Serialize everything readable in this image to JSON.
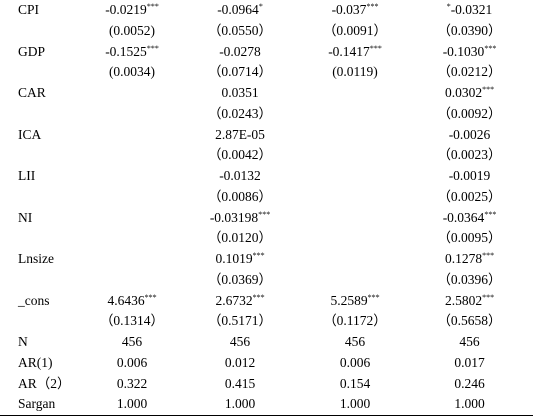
{
  "table": {
    "rows": [
      {
        "label": "CPI",
        "cells": [
          {
            "text": "-0.0219",
            "sig": "***"
          },
          {
            "text": "-0.0964",
            "sig": "*"
          },
          {
            "text": "-0.037",
            "sig": "***"
          },
          {
            "pre": "*",
            "text": "-0.0321"
          }
        ]
      },
      {
        "label": null,
        "cells": [
          "(0.0052)",
          "（0.0550）",
          "（0.0091）",
          "（0.0390）"
        ]
      },
      {
        "label": "GDP",
        "cells": [
          {
            "text": "-0.1525",
            "sig": "***"
          },
          "-0.0278",
          {
            "text": "-0.1417",
            "sig": "***"
          },
          {
            "text": "-0.1030",
            "sig": "***"
          }
        ]
      },
      {
        "label": null,
        "cells": [
          "(0.0034)",
          "（0.0714）",
          "(0.0119)",
          "（0.0212）"
        ]
      },
      {
        "label": "CAR",
        "cells": [
          null,
          "0.0351",
          null,
          {
            "text": "0.0302",
            "sig": "***"
          }
        ]
      },
      {
        "label": null,
        "cells": [
          null,
          "（0.0243）",
          null,
          "（0.0092）"
        ]
      },
      {
        "label": "ICA",
        "cells": [
          null,
          "2.87E-05",
          null,
          "-0.0026"
        ]
      },
      {
        "label": null,
        "cells": [
          null,
          "（0.0042）",
          null,
          "（0.0023）"
        ]
      },
      {
        "label": "LII",
        "cells": [
          null,
          "-0.0132",
          null,
          "-0.0019"
        ]
      },
      {
        "label": null,
        "cells": [
          null,
          "（0.0086）",
          null,
          "（0.0025）"
        ]
      },
      {
        "label": "NI",
        "cells": [
          null,
          {
            "text": "-0.03198",
            "sig": "***"
          },
          null,
          {
            "text": "-0.0364",
            "sig": "***"
          }
        ]
      },
      {
        "label": null,
        "cells": [
          null,
          "（0.0120）",
          null,
          "（0.0095）"
        ]
      },
      {
        "label": "Lnsize",
        "cells": [
          null,
          {
            "text": "0.1019",
            "sig": "***"
          },
          null,
          {
            "text": "0.1278",
            "sig": "***"
          }
        ]
      },
      {
        "label": null,
        "cells": [
          null,
          "（0.0369）",
          null,
          "（0.0396）"
        ]
      },
      {
        "label": "_cons",
        "cells": [
          {
            "text": "4.6436",
            "sig": "***"
          },
          {
            "text": "2.6732",
            "sig": "***"
          },
          {
            "text": "5.2589",
            "sig": "***"
          },
          {
            "text": "2.5802",
            "sig": "***"
          }
        ]
      },
      {
        "label": null,
        "cells": [
          "（0.1314）",
          "（0.5171）",
          "（0.1172）",
          "（0.5658）"
        ]
      },
      {
        "label": "N",
        "cells": [
          "456",
          "456",
          "456",
          "456"
        ]
      },
      {
        "label": "AR(1)",
        "cells": [
          "0.006",
          "0.012",
          "0.006",
          "0.017"
        ]
      },
      {
        "label": "AR（2）",
        "cells": [
          "0.322",
          "0.415",
          "0.154",
          "0.246"
        ]
      },
      {
        "label": "Sargan",
        "cells": [
          "1.000",
          "1.000",
          "1.000",
          "1.000"
        ]
      }
    ]
  }
}
